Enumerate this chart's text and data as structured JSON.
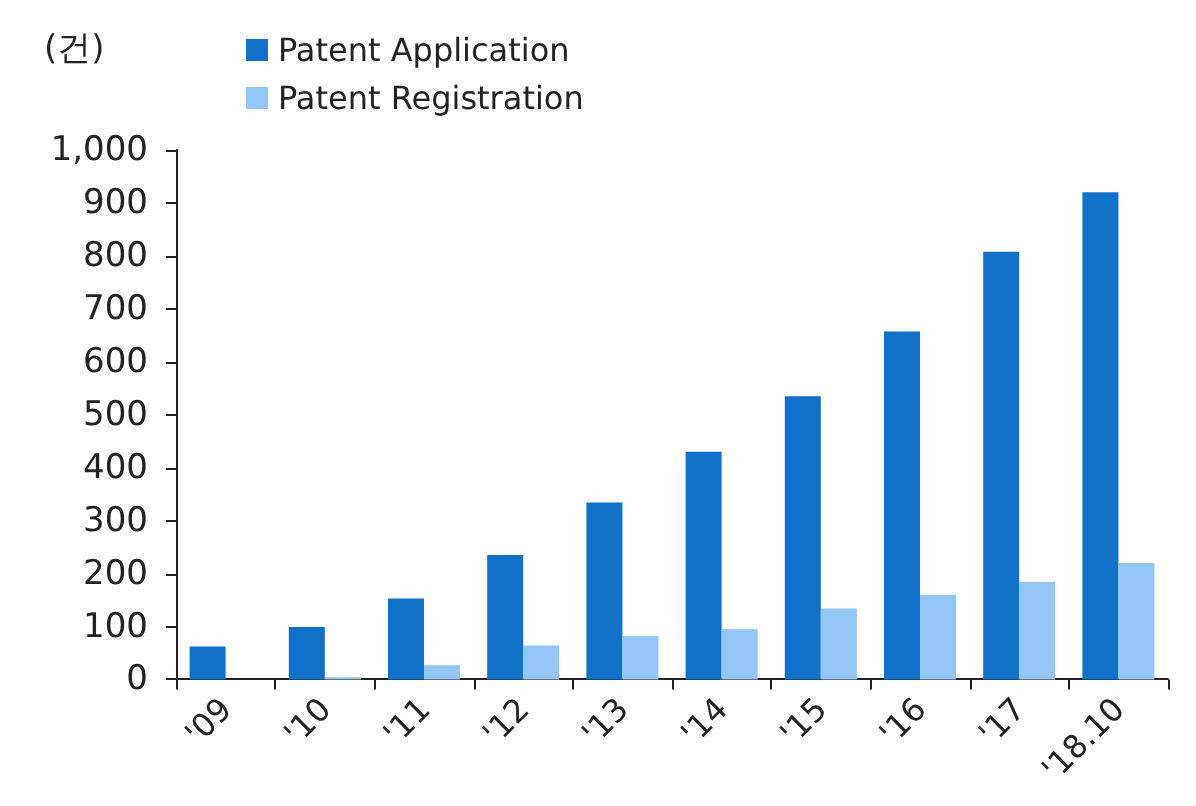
{
  "chart_data": {
    "type": "bar",
    "ylabel": "(건)",
    "categories": [
      "'09",
      "'10",
      "'11",
      "'12",
      "'13",
      "'14",
      "'15",
      "'16",
      "'17",
      "'18.10"
    ],
    "series": [
      {
        "name": "Patent Application",
        "color": "#1170c8",
        "values": [
          62,
          99,
          153,
          235,
          334,
          430,
          535,
          657,
          808,
          920
        ]
      },
      {
        "name": "Patent Registration",
        "color": "#93c5f5",
        "values": [
          null,
          4,
          27,
          64,
          82,
          95,
          134,
          160,
          184,
          220
        ]
      }
    ],
    "ylim": [
      0,
      1000
    ],
    "yticks": [
      0,
      100,
      200,
      300,
      400,
      500,
      600,
      700,
      800,
      900,
      {
        "value": 1000,
        "label": "1,000"
      }
    ],
    "grid": false,
    "legend": "top"
  }
}
